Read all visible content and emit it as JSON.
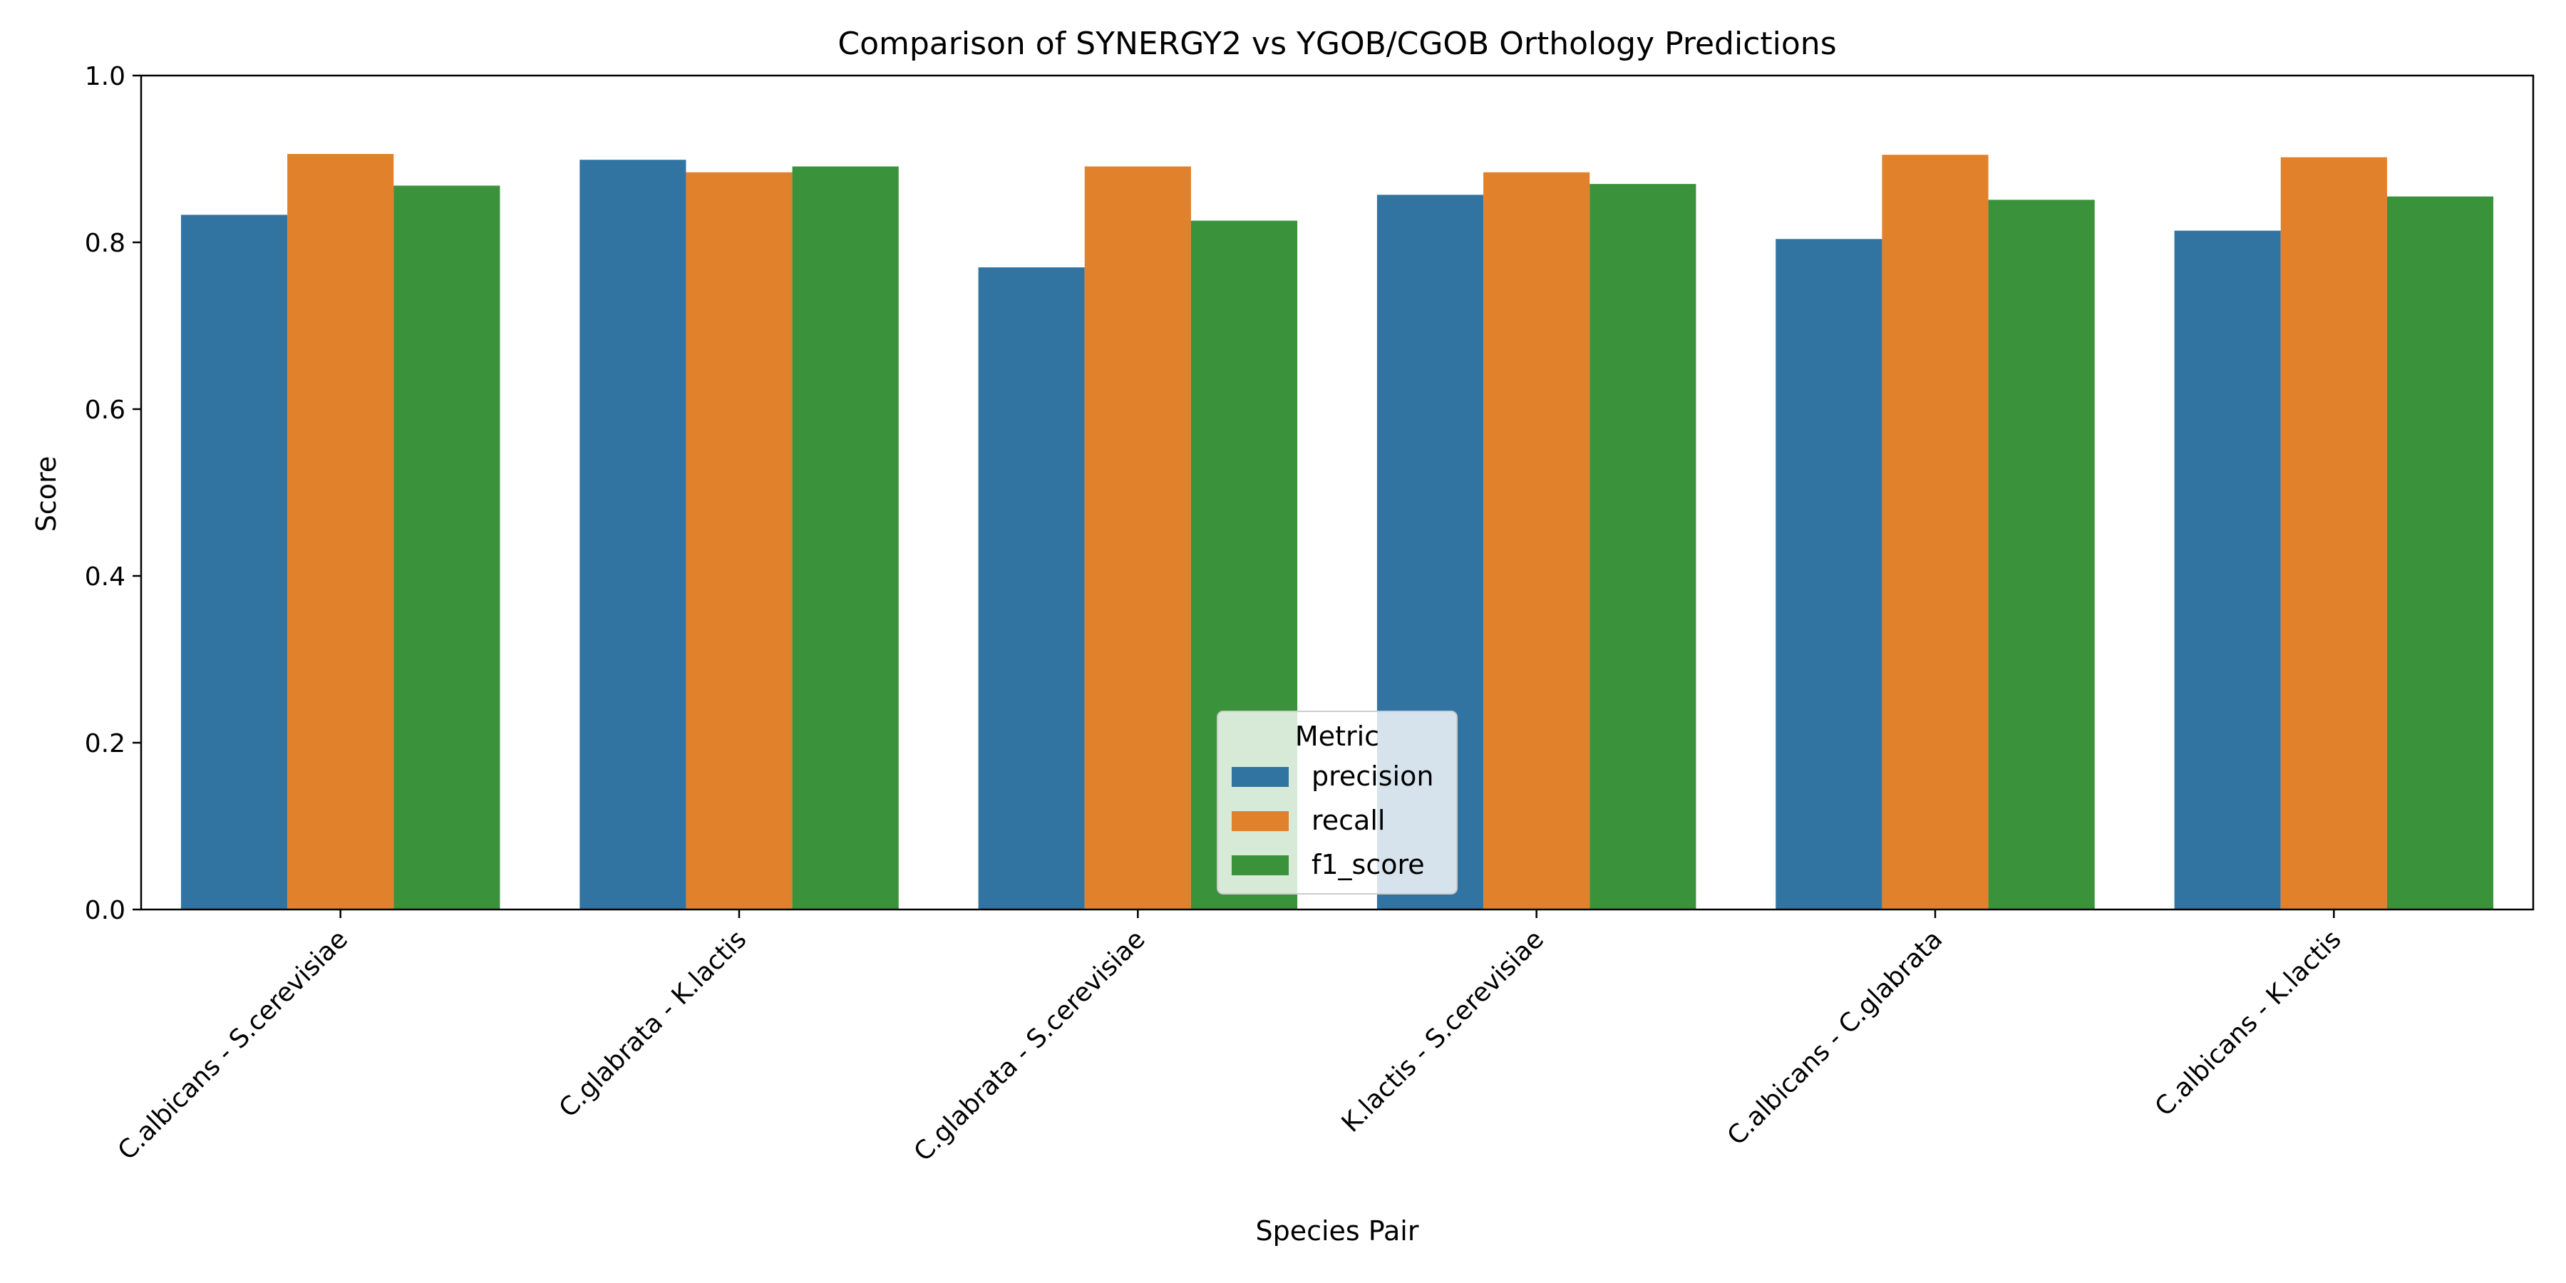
{
  "chart_data": {
    "type": "bar",
    "title": "Comparison of SYNERGY2 vs YGOB/CGOB Orthology Predictions",
    "xlabel": "Species Pair",
    "ylabel": "Score",
    "ylim": [
      0,
      1.0
    ],
    "yticks": [
      "0.0",
      "0.2",
      "0.4",
      "0.6",
      "0.8",
      "1.0"
    ],
    "ytick_values": [
      0,
      0.2,
      0.4,
      0.6,
      0.8,
      1.0
    ],
    "grid": false,
    "legend": {
      "title": "Metric",
      "placement": "bottom-center"
    },
    "categories": [
      "C.albicans - S.cerevisiae",
      "C.glabrata - K.lactis",
      "C.glabrata - S.cerevisiae",
      "K.lactis - S.cerevisiae",
      "C.albicans - C.glabrata",
      "C.albicans - K.lactis"
    ],
    "series": [
      {
        "name": "precision",
        "color": "#3274a1",
        "values": [
          0.833,
          0.899,
          0.77,
          0.857,
          0.804,
          0.814
        ]
      },
      {
        "name": "recall",
        "color": "#e1812c",
        "values": [
          0.906,
          0.884,
          0.891,
          0.884,
          0.905,
          0.902
        ]
      },
      {
        "name": "f1_score",
        "color": "#3a923a",
        "values": [
          0.868,
          0.891,
          0.826,
          0.87,
          0.851,
          0.855
        ]
      }
    ]
  }
}
